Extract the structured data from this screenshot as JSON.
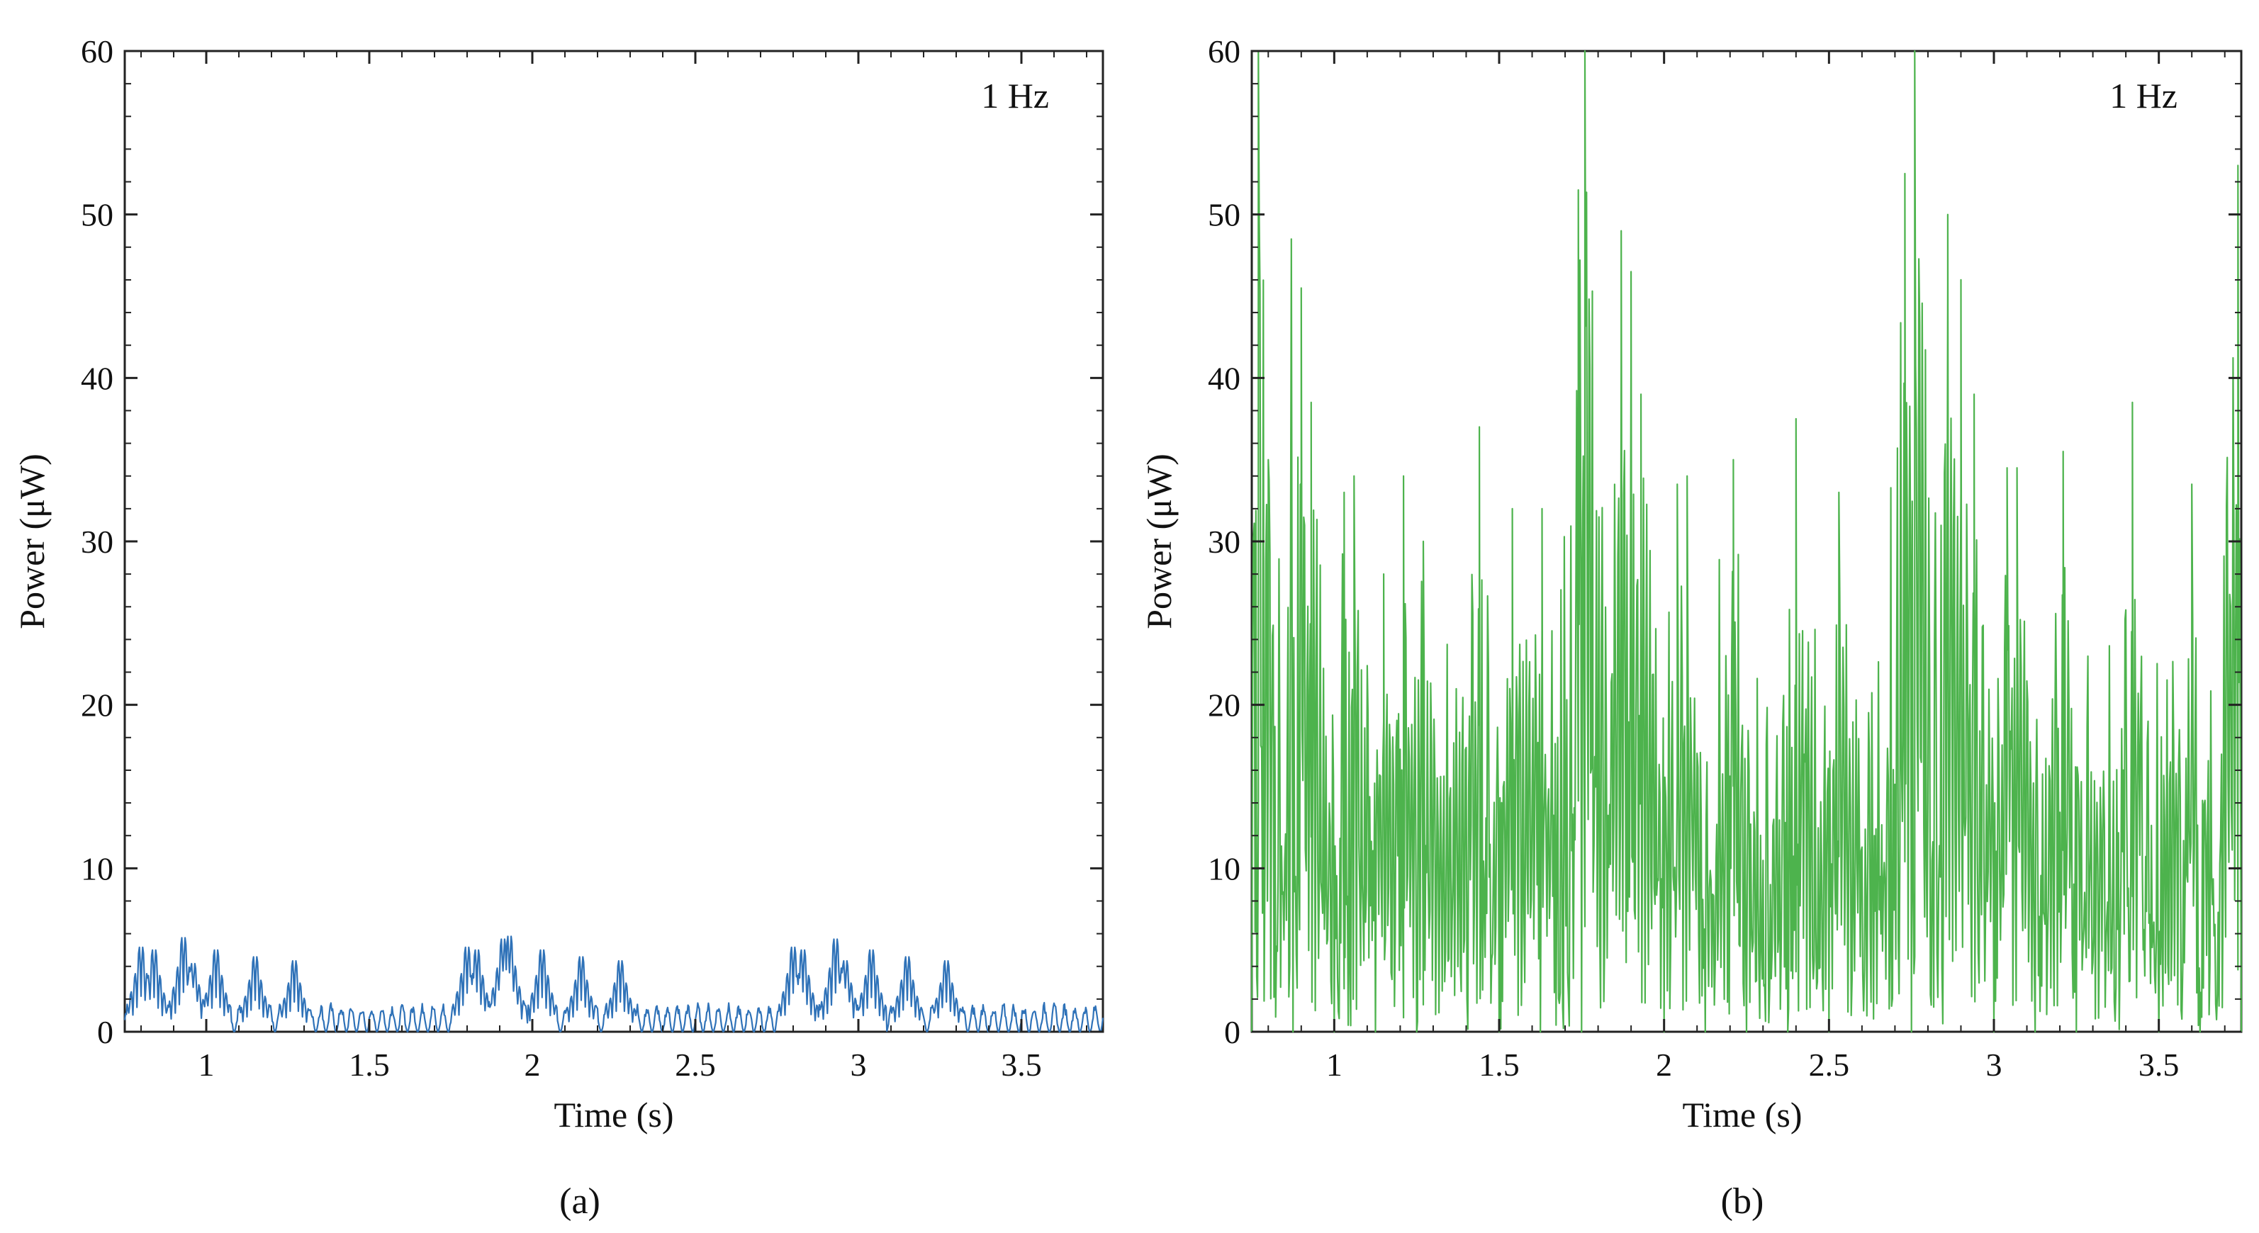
{
  "figure": {
    "panels": [
      {
        "caption": "(a)",
        "annotation": "1 Hz",
        "series_color": "#2f72b8"
      },
      {
        "caption": "(b)",
        "annotation": "1 Hz",
        "series_color": "#4db34d"
      }
    ]
  },
  "chart_data": [
    {
      "type": "line",
      "panel": "a",
      "title": "",
      "xlabel": "Time (s)",
      "ylabel": "Power (μW)",
      "xlim": [
        0.75,
        3.75
      ],
      "ylim": [
        0,
        60
      ],
      "xticks": [
        1,
        1.5,
        2,
        2.5,
        3,
        3.5
      ],
      "xtick_labels": [
        "1",
        "1.5",
        "2",
        "2.5",
        "3",
        "3.5"
      ],
      "yticks": [
        0,
        10,
        20,
        30,
        40,
        50,
        60
      ],
      "ytick_labels": [
        "0",
        "10",
        "20",
        "30",
        "40",
        "50",
        "60"
      ],
      "grid": false,
      "legend": "none",
      "annotation": "1 Hz",
      "series": [
        {
          "name": "Power",
          "color": "#2f72b8",
          "sample_step_s": 0.01,
          "description_of_envelope": "bursts of spikes ~6-7 μW near 0.75-1.3 s, 1.8-2.3 s, 2.8-3.3 s; low ripples ~1-2 μW between",
          "burst_peaks": [
            {
              "t": 0.8,
              "v": 6.2
            },
            {
              "t": 0.84,
              "v": 6.0
            },
            {
              "t": 0.93,
              "v": 6.9
            },
            {
              "t": 0.96,
              "v": 5.0
            },
            {
              "t": 1.03,
              "v": 6.0
            },
            {
              "t": 1.15,
              "v": 5.5
            },
            {
              "t": 1.27,
              "v": 5.2
            },
            {
              "t": 1.8,
              "v": 6.2
            },
            {
              "t": 1.83,
              "v": 6.0
            },
            {
              "t": 1.91,
              "v": 6.8
            },
            {
              "t": 1.93,
              "v": 7.0
            },
            {
              "t": 2.03,
              "v": 6.0
            },
            {
              "t": 2.15,
              "v": 5.5
            },
            {
              "t": 2.27,
              "v": 5.2
            },
            {
              "t": 2.8,
              "v": 6.2
            },
            {
              "t": 2.83,
              "v": 6.0
            },
            {
              "t": 2.93,
              "v": 6.8
            },
            {
              "t": 2.96,
              "v": 5.2
            },
            {
              "t": 3.04,
              "v": 6.0
            },
            {
              "t": 3.15,
              "v": 5.5
            },
            {
              "t": 3.27,
              "v": 5.2
            }
          ],
          "baseline_ripple_peak": 1.8
        }
      ]
    },
    {
      "type": "line",
      "panel": "b",
      "title": "",
      "xlabel": "Time (s)",
      "ylabel": "Power (μW)",
      "xlim": [
        0.75,
        3.75
      ],
      "ylim": [
        0,
        60
      ],
      "xticks": [
        1,
        1.5,
        2,
        2.5,
        3,
        3.5
      ],
      "xtick_labels": [
        "1",
        "1.5",
        "2",
        "2.5",
        "3",
        "3.5"
      ],
      "yticks": [
        0,
        10,
        20,
        30,
        40,
        50,
        60
      ],
      "ytick_labels": [
        "0",
        "10",
        "20",
        "30",
        "40",
        "50",
        "60"
      ],
      "grid": false,
      "legend": "none",
      "annotation": "1 Hz",
      "series": [
        {
          "name": "Power",
          "color": "#4db34d",
          "sample_step_s": 0.01,
          "description_of_envelope": "dense oscillating spikes 0-60 μW; tallest peaks ~60 μW near 0.77 s, 1.76 s and 2.76 s",
          "major_peaks": [
            {
              "t": 0.77,
              "v": 60.0
            },
            {
              "t": 0.8,
              "v": 35.0
            },
            {
              "t": 0.87,
              "v": 48.5
            },
            {
              "t": 0.9,
              "v": 45.5
            },
            {
              "t": 0.93,
              "v": 38.5
            },
            {
              "t": 1.03,
              "v": 33.0
            },
            {
              "t": 1.06,
              "v": 34.0
            },
            {
              "t": 1.15,
              "v": 28.0
            },
            {
              "t": 1.21,
              "v": 34.0
            },
            {
              "t": 1.27,
              "v": 30.0
            },
            {
              "t": 1.44,
              "v": 37.0
            },
            {
              "t": 1.54,
              "v": 32.0
            },
            {
              "t": 1.63,
              "v": 32.0
            },
            {
              "t": 1.74,
              "v": 51.5
            },
            {
              "t": 1.76,
              "v": 60.0
            },
            {
              "t": 1.87,
              "v": 49.0
            },
            {
              "t": 1.9,
              "v": 46.5
            },
            {
              "t": 1.93,
              "v": 39.0
            },
            {
              "t": 2.04,
              "v": 33.5
            },
            {
              "t": 2.07,
              "v": 34.0
            },
            {
              "t": 2.21,
              "v": 35.0
            },
            {
              "t": 2.4,
              "v": 37.5
            },
            {
              "t": 2.53,
              "v": 33.0
            },
            {
              "t": 2.73,
              "v": 52.5
            },
            {
              "t": 2.76,
              "v": 60.0
            },
            {
              "t": 2.86,
              "v": 50.0
            },
            {
              "t": 2.9,
              "v": 46.0
            },
            {
              "t": 2.94,
              "v": 39.0
            },
            {
              "t": 3.04,
              "v": 34.5
            },
            {
              "t": 3.07,
              "v": 34.5
            },
            {
              "t": 3.21,
              "v": 35.5
            },
            {
              "t": 3.42,
              "v": 38.5
            },
            {
              "t": 3.6,
              "v": 33.5
            },
            {
              "t": 3.74,
              "v": 53.0
            }
          ]
        }
      ]
    }
  ]
}
